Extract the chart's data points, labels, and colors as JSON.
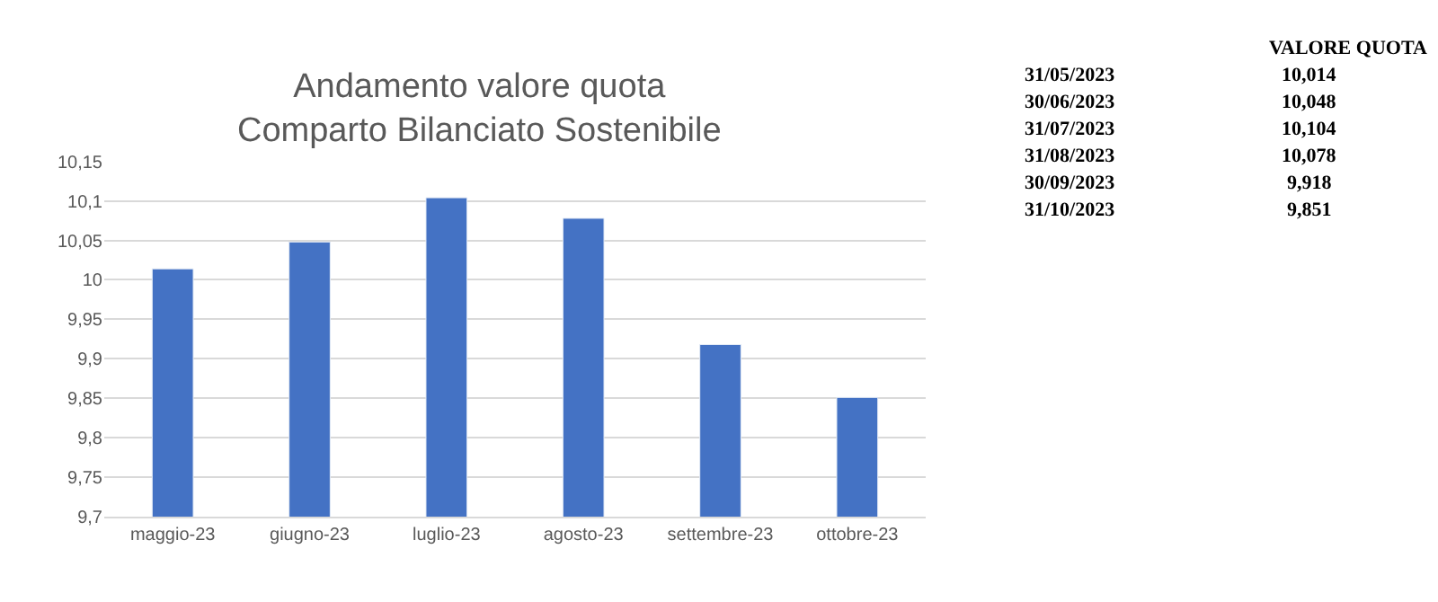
{
  "chart_data": {
    "type": "bar",
    "title": "Andamento valore quota\nComparto Bilanciato Sostenibile",
    "categories": [
      "maggio-23",
      "giugno-23",
      "luglio-23",
      "agosto-23",
      "settembre-23",
      "ottobre-23"
    ],
    "values": [
      10.014,
      10.048,
      10.104,
      10.078,
      9.918,
      9.851
    ],
    "color": "#4472c4",
    "ylim": [
      9.7,
      10.15
    ],
    "yticks": [
      {
        "value": 9.7,
        "label": "9,7"
      },
      {
        "value": 9.75,
        "label": "9,75"
      },
      {
        "value": 9.8,
        "label": "9,8"
      },
      {
        "value": 9.85,
        "label": "9,85"
      },
      {
        "value": 9.9,
        "label": "9,9"
      },
      {
        "value": 9.95,
        "label": "9,95"
      },
      {
        "value": 10,
        "label": "10"
      },
      {
        "value": 10.05,
        "label": "10,05"
      },
      {
        "value": 10.1,
        "label": "10,1"
      },
      {
        "value": 10.15,
        "label": "10,15"
      }
    ],
    "grid": "y",
    "legend": false,
    "annotations": [
      "VALORE QUOTA",
      "31/05/2023",
      "10,014",
      "30/06/2023",
      "10,048",
      "31/07/2023",
      "10,104",
      "31/08/2023",
      "10,078",
      "30/09/2023",
      "9,918",
      "31/10/2023",
      "9,851"
    ]
  }
}
